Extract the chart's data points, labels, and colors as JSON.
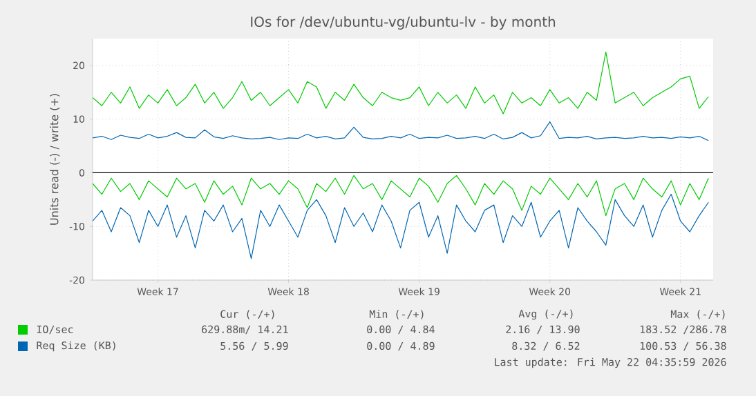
{
  "chart_data": {
    "type": "line",
    "title": "IOs for /dev/ubuntu-vg/ubuntu-lv - by month",
    "ylabel": "Units read (-) / write (+)",
    "ylim": [
      -20,
      25
    ],
    "yticks": [
      -20,
      -10,
      0,
      10,
      20
    ],
    "grid": true,
    "legend": "bottom",
    "categories": [
      null,
      null,
      null,
      null,
      null,
      null,
      null,
      "Week 17",
      null,
      null,
      null,
      null,
      null,
      null,
      null,
      null,
      null,
      null,
      null,
      null,
      null,
      "Week 18",
      null,
      null,
      null,
      null,
      null,
      null,
      null,
      null,
      null,
      null,
      null,
      null,
      null,
      "Week 19",
      null,
      null,
      null,
      null,
      null,
      null,
      null,
      null,
      null,
      null,
      null,
      null,
      null,
      "Week 20",
      null,
      null,
      null,
      null,
      null,
      null,
      null,
      null,
      null,
      null,
      null,
      null,
      null,
      "Week 21",
      null,
      null,
      null
    ],
    "series": [
      {
        "name": "IO/sec",
        "color": "#00cc00",
        "values": [
          14,
          12.5,
          15,
          13,
          16,
          12,
          14.5,
          13,
          15.5,
          12.5,
          14,
          16.5,
          13,
          15,
          12,
          14,
          17,
          13.5,
          15,
          12.5,
          14,
          15.5,
          13,
          17,
          16,
          12,
          15,
          13.5,
          16.5,
          14,
          12.5,
          15,
          14,
          13.5,
          14,
          16,
          12.5,
          15,
          13,
          14.5,
          12,
          16,
          13,
          14.5,
          11,
          15,
          13,
          14,
          12.5,
          15.5,
          13,
          14,
          12,
          15,
          13.5,
          22.5,
          13,
          14,
          15,
          12.5,
          14,
          15,
          16,
          17.5,
          18,
          12,
          14.2
        ]
      },
      {
        "color": "#00cc00",
        "values": [
          -2,
          -4,
          -1,
          -3.5,
          -2,
          -5,
          -1.5,
          -3,
          -4.5,
          -1,
          -3,
          -2,
          -5.5,
          -1.5,
          -4,
          -2.5,
          -6,
          -1,
          -3,
          -2,
          -4,
          -1.5,
          -3,
          -6.5,
          -2,
          -3.5,
          -1,
          -4,
          -0.5,
          -3,
          -2,
          -5,
          -1.5,
          -3,
          -4.5,
          -1,
          -2.5,
          -5.5,
          -2,
          -0.5,
          -3,
          -6,
          -2,
          -4,
          -1.5,
          -3,
          -7,
          -2.5,
          -4,
          -1,
          -3,
          -5,
          -2,
          -4.5,
          -1.5,
          -8,
          -3,
          -2,
          -5,
          -1,
          -3,
          -4.5,
          -1.5,
          -6,
          -2,
          -5,
          -1
        ]
      },
      {
        "name": "Req Size (KB)",
        "color": "#0066b3",
        "values": [
          6.5,
          6.8,
          6.2,
          7,
          6.6,
          6.4,
          7.2,
          6.5,
          6.8,
          7.5,
          6.6,
          6.5,
          8,
          6.7,
          6.4,
          6.9,
          6.5,
          6.3,
          6.4,
          6.6,
          6.2,
          6.5,
          6.4,
          7.2,
          6.5,
          6.8,
          6.3,
          6.5,
          8.5,
          6.6,
          6.3,
          6.4,
          6.8,
          6.5,
          7.2,
          6.4,
          6.6,
          6.5,
          7,
          6.4,
          6.5,
          6.8,
          6.4,
          7.2,
          6.3,
          6.6,
          7.5,
          6.5,
          6.9,
          9.5,
          6.4,
          6.6,
          6.5,
          6.8,
          6.3,
          6.5,
          6.6,
          6.4,
          6.5,
          6.8,
          6.5,
          6.6,
          6.4,
          6.7,
          6.5,
          6.8,
          6
        ]
      },
      {
        "color": "#0066b3",
        "values": [
          -9,
          -7,
          -11,
          -6.5,
          -8,
          -13,
          -7,
          -10,
          -6,
          -12,
          -8,
          -14,
          -7,
          -9,
          -6,
          -11,
          -8.5,
          -16,
          -7,
          -10,
          -6,
          -9,
          -12,
          -7,
          -5,
          -8,
          -13,
          -6.5,
          -10,
          -7.5,
          -11,
          -6,
          -9,
          -14,
          -7,
          -5.5,
          -12,
          -8,
          -15,
          -6,
          -9,
          -11,
          -7,
          -6,
          -13,
          -8,
          -10,
          -5.5,
          -12,
          -9,
          -7,
          -14,
          -6.5,
          -9,
          -11,
          -13.5,
          -5,
          -8,
          -10,
          -6,
          -12,
          -7,
          -4,
          -9,
          -11,
          -8,
          -5.5
        ]
      }
    ],
    "ref_lines": [
      {
        "axis": "y",
        "value": 0,
        "color": "#000000"
      }
    ],
    "annotations": [
      "Cur (-/+)",
      "Min (-/+)",
      "Avg (-/+)",
      "Max (-/+)",
      "629.88m/ 14.21",
      "0.00 /  4.84",
      "2.16 / 13.90",
      "183.52 /286.78",
      "5.56 /  5.99",
      "0.00 /  4.89",
      "8.32 /  6.52",
      "100.53 / 56.38",
      "Last update: Fri May 22 04:35:59 2026"
    ]
  }
}
